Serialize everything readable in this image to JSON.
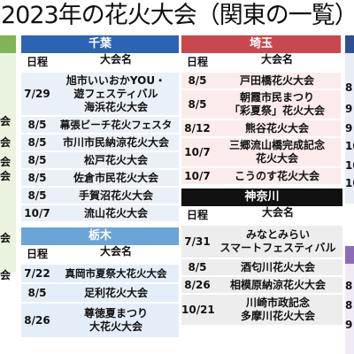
{
  "title": "2023年の花火大会（関東の一覧）",
  "left_fragments": [
    "会",
    "会",
    "会",
    "会",
    "会",
    "会"
  ],
  "right_fragments": [
    "8",
    "9",
    "9",
    "10",
    "10",
    "10",
    "8",
    "8",
    "9"
  ],
  "chiba": {
    "name": "千葉",
    "col_date": "日程",
    "col_event": "大会名",
    "rows": [
      {
        "date": "7/29",
        "l1": "旭市いいおかYOU・",
        "l2": "遊フェスティバル",
        "l3": "海浜花火大会"
      },
      {
        "date": "8/5",
        "l1": "幕張ビーチ花火フェスタ"
      },
      {
        "date": "8/5",
        "l1": "市川市民納涼花火大会"
      },
      {
        "date": "8/5",
        "l1": "松戸花火大会"
      },
      {
        "date": "8/5",
        "l1": "佐倉市民花火大会"
      },
      {
        "date": "8/5",
        "l1": "手賀沼花火大会"
      },
      {
        "date": "10/7",
        "l1": "流山花火大会"
      }
    ]
  },
  "saitama": {
    "name": "埼玉",
    "col_date": "日程",
    "col_event": "大会名",
    "rows": [
      {
        "date": "8/5",
        "l1": "戸田橋花火大会"
      },
      {
        "date": "8/5",
        "l1": "朝霞市民まつり",
        "l2": "「彩夏祭」花火大会"
      },
      {
        "date": "8/12",
        "l1": "熊谷花火大会"
      },
      {
        "date": "10/7",
        "l1": "三郷流山橋完成記念",
        "l2": "花火大会"
      },
      {
        "date": "10/7",
        "l1": "こうのす花火大会"
      }
    ]
  },
  "tochigi": {
    "name": "栃木",
    "col_date": "日程",
    "col_event": "大会名",
    "rows": [
      {
        "date": "7/22",
        "l1": "真岡市夏祭大花火大会"
      },
      {
        "date": "8/5",
        "l1": "足利花火大会"
      },
      {
        "date": "8/26",
        "l1": "尊徳夏まつり",
        "l2": "大花火大会"
      }
    ]
  },
  "kanagawa": {
    "name": "神奈川",
    "col_date": "日程",
    "col_event": "大会名",
    "rows": [
      {
        "date": "7/31",
        "l1": "みなとみらい",
        "l2": "スマートフェスティバル"
      },
      {
        "date": "8/5",
        "l1": "酒匂川花火大会"
      },
      {
        "date": "8/26",
        "l1": "相模原納涼花火大会"
      },
      {
        "date": "10/21",
        "l1": "川崎市政記念",
        "l2": "多摩川花火大会"
      }
    ]
  }
}
